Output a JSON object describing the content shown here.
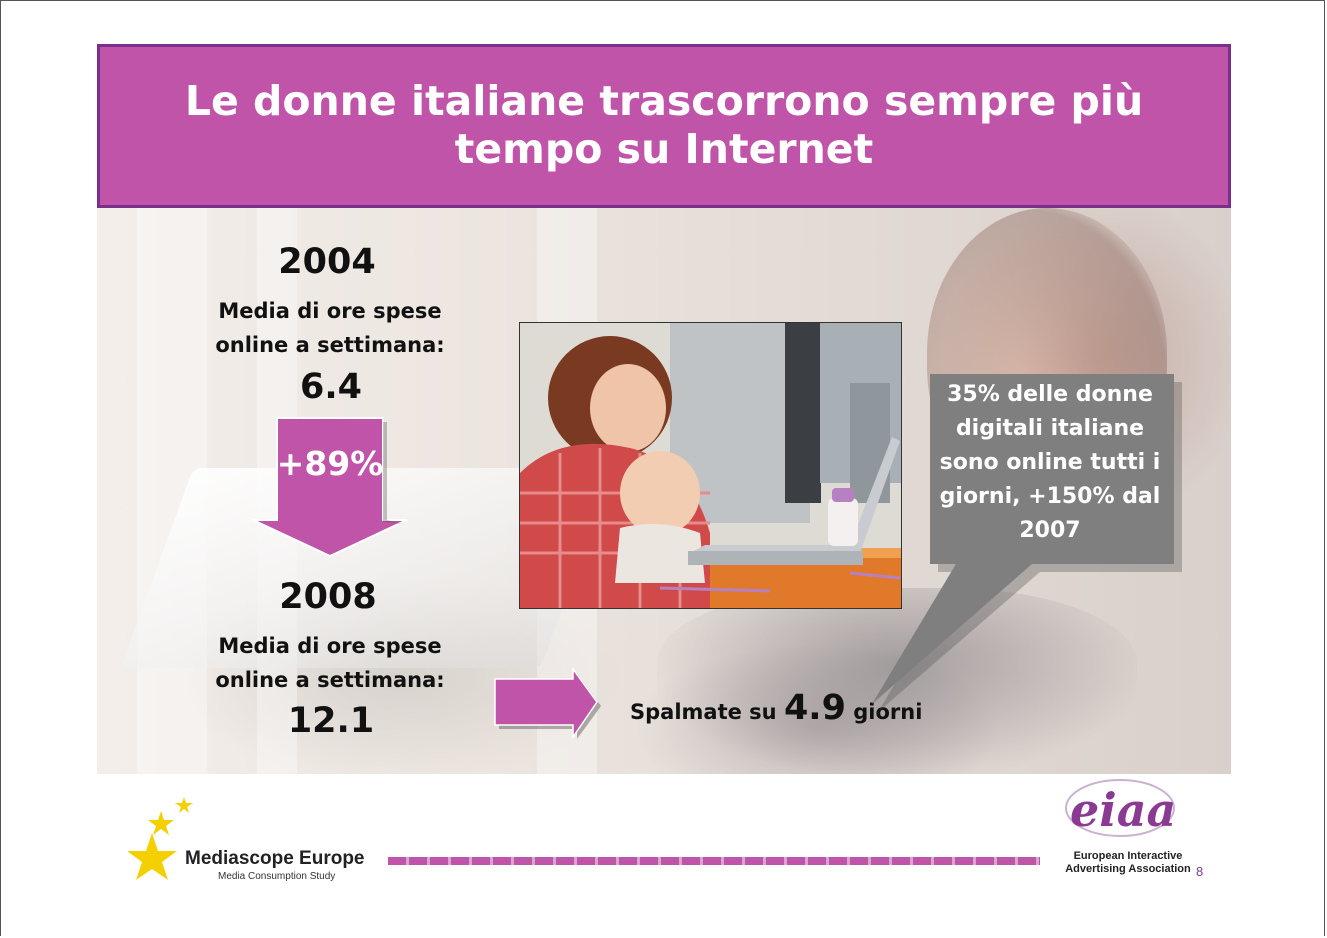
{
  "title": "Le donne italiane trascorrono sempre più tempo su Internet",
  "block_2004": {
    "year": "2004",
    "desc_line1": "Media di ore spese",
    "desc_line2": "online a settimana:",
    "value": "6.4"
  },
  "growth": "+89%",
  "block_2008": {
    "year": "2008",
    "desc_line1": "Media di ore spese",
    "desc_line2": "online a settimana:",
    "value": "12.1"
  },
  "spalmate": {
    "prefix": "Spalmate su",
    "number": "4.9",
    "suffix": "giorni"
  },
  "callout": {
    "line1": "35% delle donne",
    "line2": "digitali italiane",
    "line3": "sono online tutti i",
    "line4": "giorni, +150% dal",
    "line5": "2007"
  },
  "footer": {
    "mediascope_title": "Mediascope Europe",
    "mediascope_sub": "Media Consumption Study",
    "eiaa_logo_text": "eiaa",
    "eiaa_line1": "European Interactive",
    "eiaa_line2": "Advertising Association",
    "page_number": "8"
  },
  "colors": {
    "accent": "#c054a8",
    "accent_border": "#7a2f8a",
    "callout": "#7f7f7f",
    "star": "#f5d000"
  }
}
